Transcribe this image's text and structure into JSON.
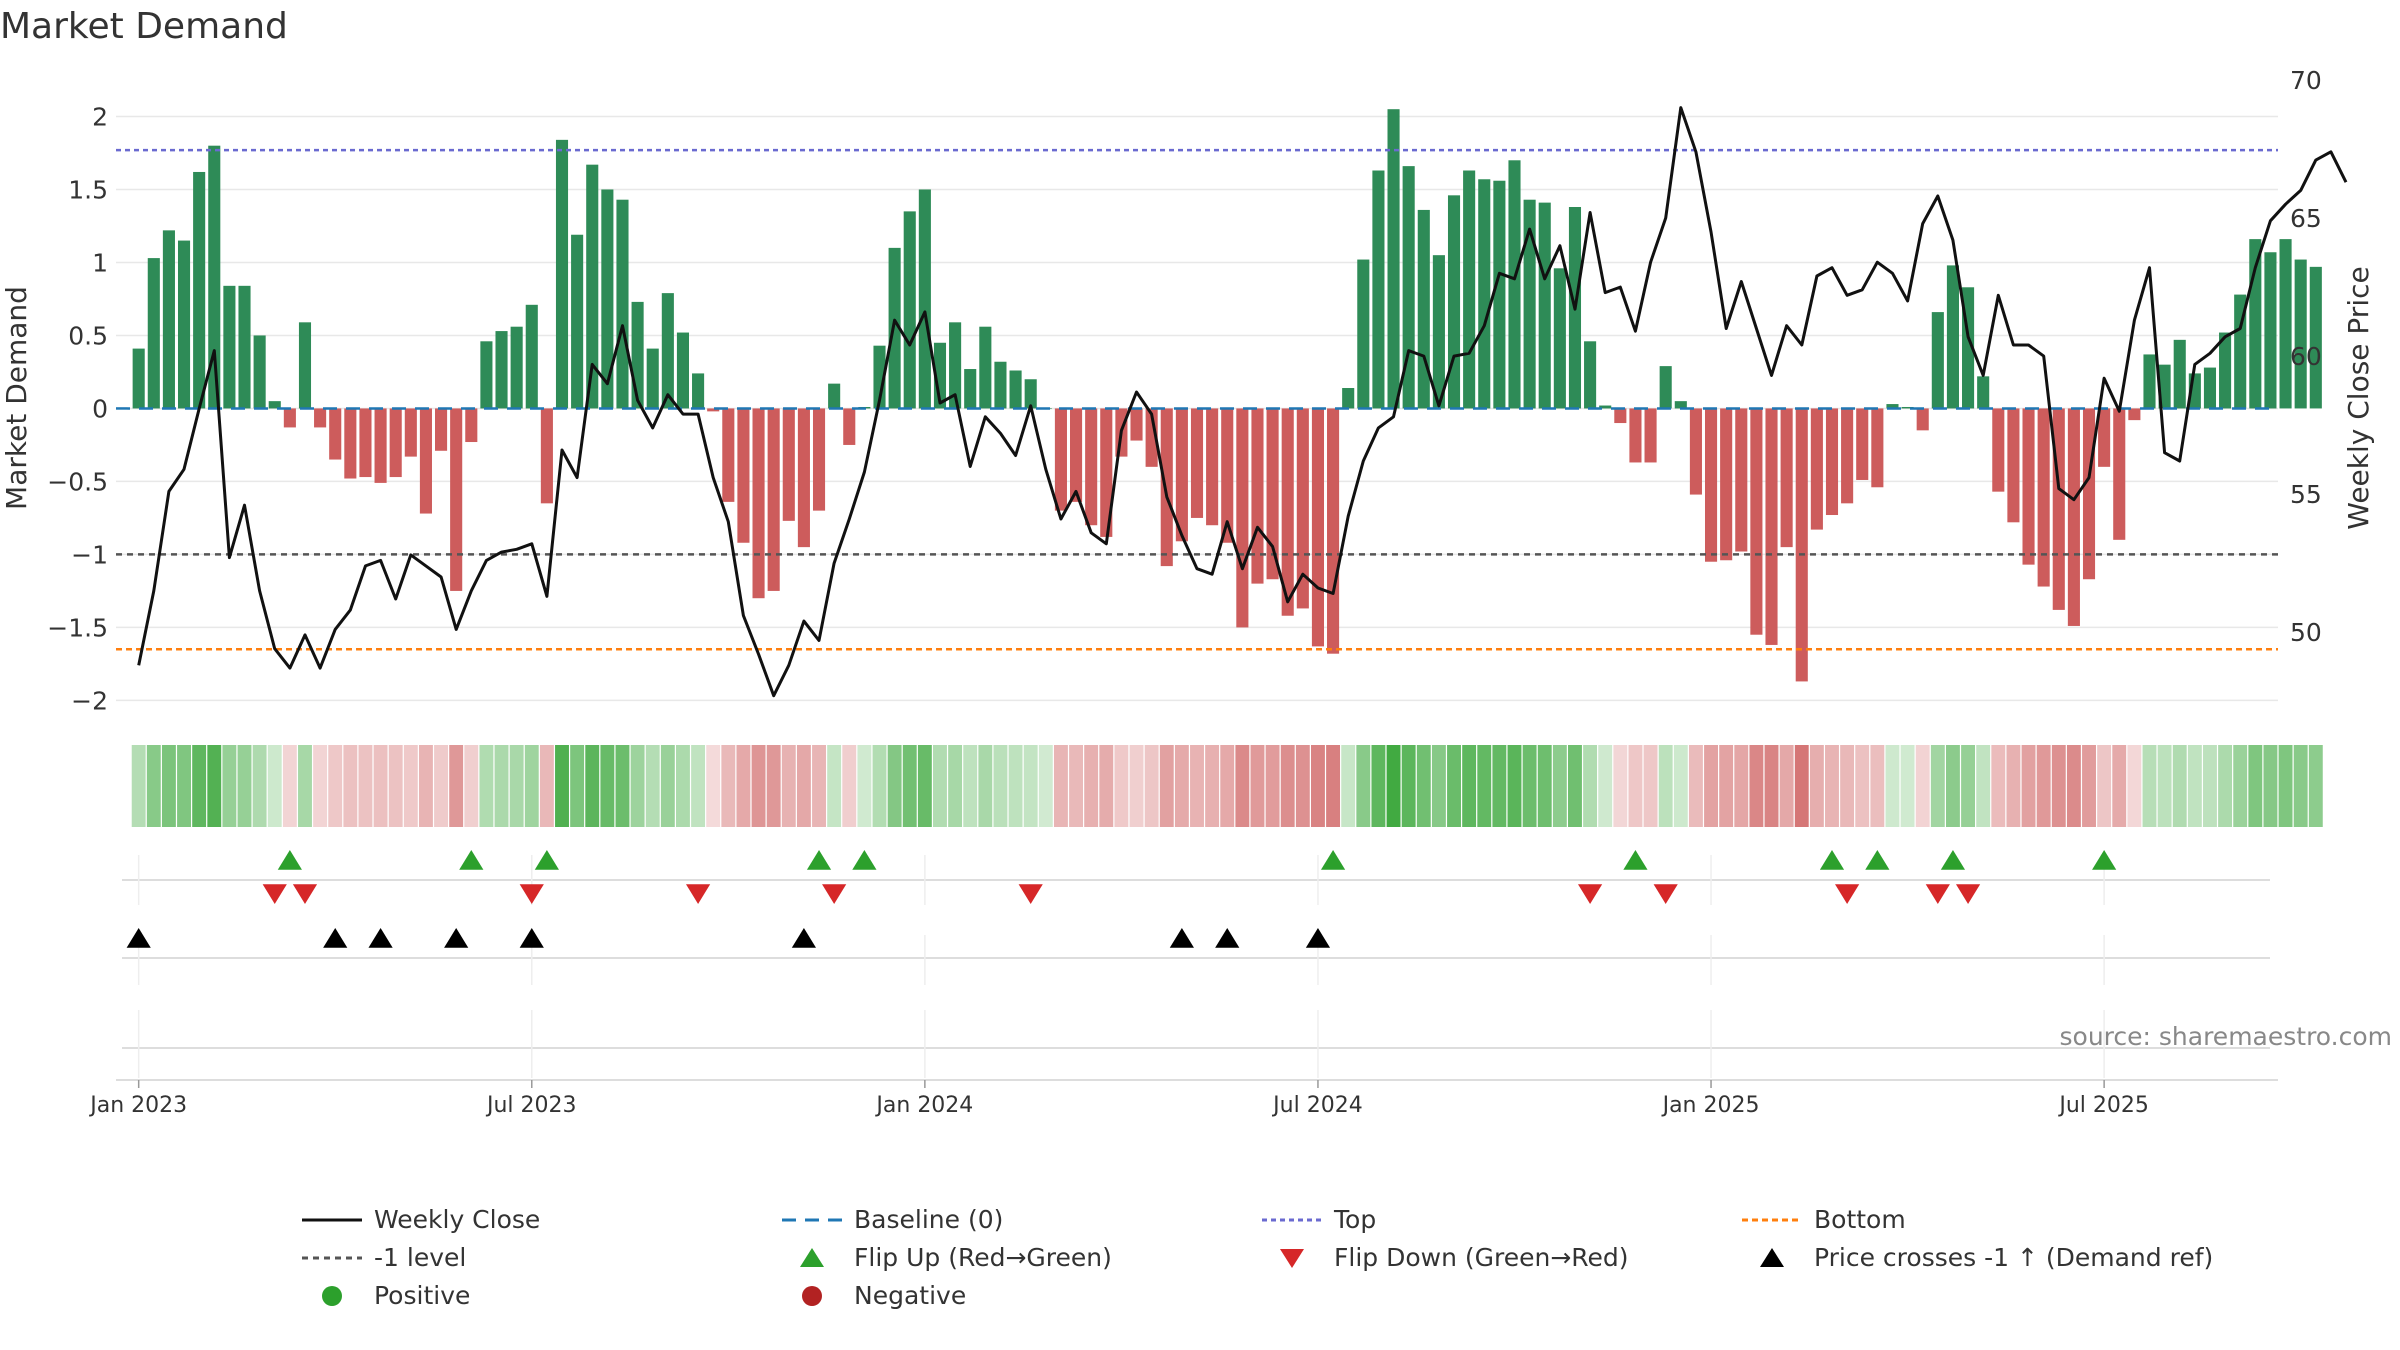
{
  "chart_data": {
    "type": "bar",
    "title": "Market Demand",
    "ylabel": "Market Demand",
    "y2label": "Weekly Close Price",
    "ylim": [
      -2.1,
      2.25
    ],
    "y2lim": [
      47,
      70
    ],
    "yticks": [
      "2",
      "1.5",
      "1",
      "0.5",
      "0",
      "−0.5",
      "−1",
      "−1.5",
      "−2"
    ],
    "ytick_values": [
      2,
      1.5,
      1,
      0.5,
      0,
      -0.5,
      -1,
      -1.5,
      -2
    ],
    "y2ticks": [
      "70",
      "65",
      "60",
      "55",
      "50"
    ],
    "y2tick_values": [
      70,
      65,
      60,
      55,
      50
    ],
    "xticks": [
      "Jan 2023",
      "Jul 2023",
      "Jan 2024",
      "Jul 2024",
      "Jan 2025",
      "Jul 2025"
    ],
    "xtick_weeks": [
      0,
      26,
      52,
      78,
      104,
      130
    ],
    "start_week": -1.5,
    "end_week": 141.5,
    "top_level": 1.77,
    "bottom_level": -1.65,
    "minus1_level": -1,
    "demand": [
      0.41,
      1.03,
      1.22,
      1.15,
      1.62,
      1.8,
      0.84,
      0.84,
      0.5,
      0.05,
      -0.13,
      0.59,
      -0.13,
      -0.35,
      -0.48,
      -0.47,
      -0.51,
      -0.47,
      -0.33,
      -0.72,
      -0.29,
      -1.25,
      -0.23,
      0.46,
      0.53,
      0.56,
      0.71,
      -0.65,
      1.84,
      1.19,
      1.67,
      1.5,
      1.43,
      0.73,
      0.41,
      0.79,
      0.52,
      0.24,
      -0.02,
      -0.64,
      -0.92,
      -1.3,
      -1.25,
      -0.77,
      -0.95,
      -0.7,
      0.17,
      -0.25,
      0.01,
      0.43,
      1.1,
      1.35,
      1.5,
      0.45,
      0.59,
      0.27,
      0.56,
      0.32,
      0.26,
      0.2,
      0,
      -0.7,
      -0.64,
      -0.8,
      -0.88,
      -0.33,
      -0.22,
      -0.4,
      -1.08,
      -0.91,
      -0.75,
      -0.8,
      -0.92,
      -1.5,
      -1.2,
      -1.17,
      -1.42,
      -1.37,
      -1.63,
      -1.68,
      0.14,
      1.02,
      1.63,
      2.05,
      1.66,
      1.36,
      1.05,
      1.46,
      1.63,
      1.57,
      1.56,
      1.7,
      1.43,
      1.41,
      0.96,
      1.38,
      0.46,
      0.02,
      -0.1,
      -0.37,
      -0.37,
      0.29,
      0.05,
      -0.59,
      -1.05,
      -1.04,
      -0.98,
      -1.55,
      -1.62,
      -0.95,
      -1.87,
      -0.83,
      -0.73,
      -0.65,
      -0.49,
      -0.54,
      0.03,
      0.01,
      -0.15,
      0.66,
      0.98,
      0.83,
      0.22,
      -0.57,
      -0.78,
      -1.07,
      -1.22,
      -1.38,
      -1.49,
      -1.17,
      -0.4,
      -0.9,
      -0.08,
      0.37,
      0.3,
      0.47,
      0.24,
      0.28,
      0.52,
      0.78,
      1.16,
      1.07,
      1.16,
      1.02,
      0.97
    ],
    "close": [
      48.8,
      51.5,
      55.1,
      55.9,
      58.1,
      60.2,
      52.7,
      54.6,
      51.5,
      49.4,
      48.7,
      49.9,
      48.7,
      50.1,
      50.8,
      52.4,
      52.6,
      51.2,
      52.8,
      52.4,
      52.0,
      50.1,
      51.5,
      52.6,
      52.9,
      53.0,
      53.2,
      51.3,
      56.6,
      55.6,
      59.7,
      59.0,
      61.1,
      58.4,
      57.4,
      58.6,
      57.9,
      57.9,
      55.6,
      54.0,
      50.6,
      49.2,
      47.7,
      48.8,
      50.4,
      49.7,
      52.5,
      54.1,
      55.8,
      58.4,
      61.3,
      60.4,
      61.6,
      58.3,
      58.6,
      56.0,
      57.8,
      57.2,
      56.4,
      58.2,
      55.9,
      54.1,
      55.1,
      53.6,
      53.2,
      57.3,
      58.7,
      57.9,
      54.9,
      53.5,
      52.3,
      52.1,
      54.0,
      52.3,
      53.8,
      53.1,
      51.1,
      52.1,
      51.6,
      51.4,
      54.2,
      56.2,
      57.4,
      57.8,
      60.2,
      60.0,
      58.2,
      60.0,
      60.1,
      61.1,
      63.0,
      62.8,
      64.6,
      62.8,
      64.0,
      61.7,
      65.2,
      62.3,
      62.5,
      60.9,
      63.4,
      65.0,
      69.0,
      67.4,
      64.5,
      61.0,
      62.7,
      61.0,
      59.3,
      61.1,
      60.4,
      62.9,
      63.2,
      62.2,
      62.4,
      63.4,
      63.0,
      62.0,
      64.8,
      65.8,
      64.2,
      60.7,
      59.3,
      62.2,
      60.4,
      60.4,
      60.0,
      55.2,
      54.8,
      55.6,
      59.2,
      58.0,
      61.3,
      63.2,
      56.5,
      56.2,
      59.7,
      60.1,
      60.7,
      61.0,
      63.2,
      64.9,
      65.5,
      66.0,
      67.1,
      67.4,
      66.3
    ],
    "flip_up": [
      10,
      22,
      27,
      45,
      48,
      79,
      99,
      112,
      115,
      120,
      130
    ],
    "flip_down": [
      9,
      11,
      26,
      37,
      46,
      59,
      96,
      101,
      113,
      119,
      121
    ],
    "price_cross": [
      0,
      13,
      16,
      21,
      26,
      44,
      69,
      72,
      78
    ],
    "watermark": "source: sharemaestro.com",
    "legend": [
      {
        "key": "weekly-close",
        "label": "Weekly Close"
      },
      {
        "key": "baseline",
        "label": "Baseline (0)"
      },
      {
        "key": "top",
        "label": "Top"
      },
      {
        "key": "bottom",
        "label": "Bottom"
      },
      {
        "key": "minus1",
        "label": "-1 level"
      },
      {
        "key": "flip-up",
        "label": "Flip Up (Red→Green)"
      },
      {
        "key": "flip-down",
        "label": "Flip Down (Green→Red)"
      },
      {
        "key": "price-cross",
        "label": "Price crosses -1 ↑ (Demand ref)"
      },
      {
        "key": "positive",
        "label": "Positive"
      },
      {
        "key": "negative",
        "label": "Negative"
      }
    ],
    "colors": {
      "positive": "#2e8b57",
      "negative": "#cd5c5c",
      "close": "#111111",
      "baseline": "#1f77b4",
      "top": "#6a6ad0",
      "bottom": "#ff7f0e",
      "minus1": "#555555",
      "flip_up": "#2ca02c",
      "flip_down": "#d62728",
      "cross": "#000000",
      "positive_dot": "#2ca02c",
      "negative_dot": "#b22222"
    }
  }
}
